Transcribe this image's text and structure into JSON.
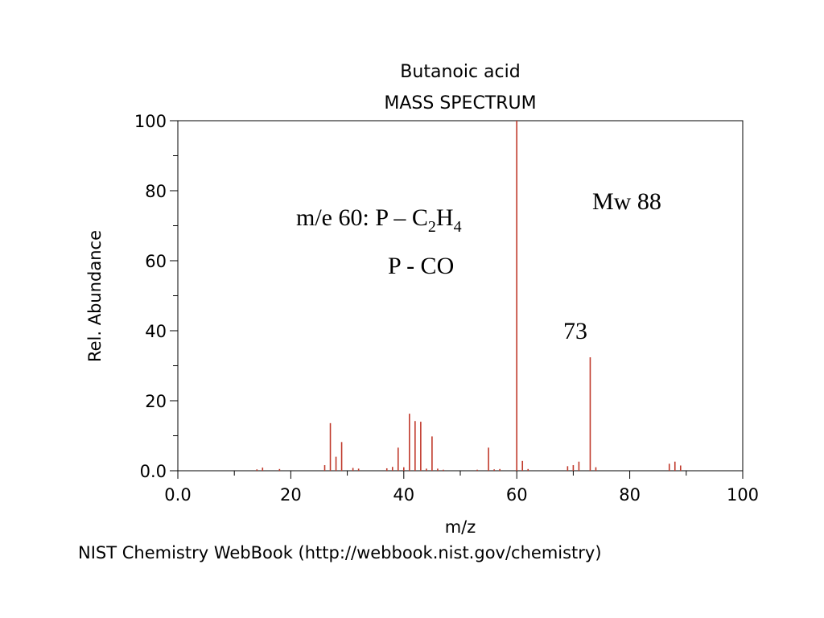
{
  "chart_data": {
    "type": "bar",
    "title": "Butanoic acid",
    "subtitle": "MASS SPECTRUM",
    "xlabel": "m/z",
    "ylabel": "Rel. Abundance",
    "xlim": [
      0,
      100
    ],
    "ylim": [
      0,
      100
    ],
    "x_ticks": [
      "0.0",
      "20",
      "40",
      "60",
      "80",
      "100"
    ],
    "y_ticks": [
      "0.0",
      "20",
      "40",
      "60",
      "80",
      "100"
    ],
    "grid": false,
    "bar_color": "#c0392b",
    "peaks": [
      {
        "mz": 14,
        "abundance": 0.4
      },
      {
        "mz": 15,
        "abundance": 0.9
      },
      {
        "mz": 18,
        "abundance": 0.5
      },
      {
        "mz": 26,
        "abundance": 1.6
      },
      {
        "mz": 27,
        "abundance": 13.6
      },
      {
        "mz": 28,
        "abundance": 4.0
      },
      {
        "mz": 29,
        "abundance": 8.2
      },
      {
        "mz": 31,
        "abundance": 0.8
      },
      {
        "mz": 32,
        "abundance": 0.6
      },
      {
        "mz": 37,
        "abundance": 0.7
      },
      {
        "mz": 38,
        "abundance": 1.1
      },
      {
        "mz": 39,
        "abundance": 6.6
      },
      {
        "mz": 40,
        "abundance": 1.0
      },
      {
        "mz": 41,
        "abundance": 16.3
      },
      {
        "mz": 42,
        "abundance": 14.2
      },
      {
        "mz": 43,
        "abundance": 14.0
      },
      {
        "mz": 44,
        "abundance": 0.6
      },
      {
        "mz": 45,
        "abundance": 9.8
      },
      {
        "mz": 46,
        "abundance": 0.6
      },
      {
        "mz": 47,
        "abundance": 0.3
      },
      {
        "mz": 53,
        "abundance": 0.3
      },
      {
        "mz": 55,
        "abundance": 6.6
      },
      {
        "mz": 56,
        "abundance": 0.4
      },
      {
        "mz": 57,
        "abundance": 0.5
      },
      {
        "mz": 60,
        "abundance": 100
      },
      {
        "mz": 61,
        "abundance": 2.8
      },
      {
        "mz": 62,
        "abundance": 0.5
      },
      {
        "mz": 69,
        "abundance": 1.3
      },
      {
        "mz": 70,
        "abundance": 1.6
      },
      {
        "mz": 71,
        "abundance": 2.6
      },
      {
        "mz": 73,
        "abundance": 32.4
      },
      {
        "mz": 74,
        "abundance": 1.0
      },
      {
        "mz": 87,
        "abundance": 2.0
      },
      {
        "mz": 88,
        "abundance": 2.6
      },
      {
        "mz": 89,
        "abundance": 1.5
      }
    ],
    "annotations": {
      "mw": "Mw 88",
      "m60_prefix": "m/e 60: P – C",
      "m60_sub1": "2",
      "m60_mid": "H",
      "m60_sub2": "4",
      "pco": "P - CO",
      "peak73": "73"
    }
  },
  "footer": {
    "credit": "NIST Chemistry WebBook (http://webbook.nist.gov/chemistry)"
  }
}
